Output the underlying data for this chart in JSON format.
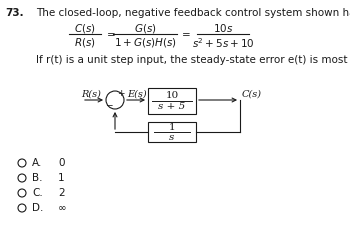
{
  "question_number": "73.",
  "question_text": "The closed-loop, negative feedback control system shown has the transfer function:",
  "condition_text": "If r(t) is a unit step input, the steady-state error e(t) is most nearly:",
  "block_gs_num": "10",
  "block_gs_den": "s + 5",
  "block_hs_num": "1",
  "block_hs_den": "s",
  "label_Rs": "R(s)",
  "label_Es": "E(s)",
  "label_Cs": "C(s)",
  "options": [
    {
      "letter": "A.",
      "value": "0"
    },
    {
      "letter": "B.",
      "value": "1"
    },
    {
      "letter": "C.",
      "value": "2"
    },
    {
      "letter": "D.",
      "value": "∞"
    }
  ],
  "bg_color": "#ffffff",
  "text_color": "#1a1a1a",
  "font_size_main": 7.5,
  "font_size_small": 7.0,
  "font_size_box": 7.5
}
